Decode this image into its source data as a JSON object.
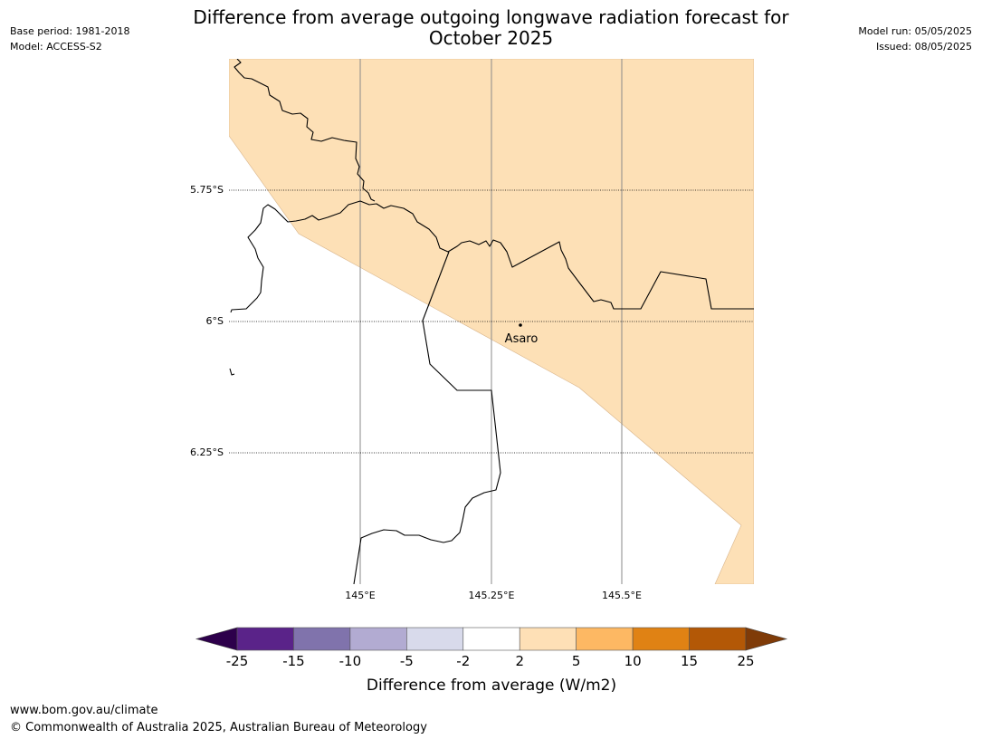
{
  "header": {
    "title_line1": "Difference from average outgoing longwave radiation forecast for",
    "title_line2": "October 2025",
    "base_period": "Base period: 1981-2018",
    "model": "Model: ACCESS-S2",
    "model_run": "Model run: 05/05/2025",
    "issued": "Issued: 08/05/2025"
  },
  "map": {
    "lat_labels": [
      "5.75°S",
      "6°S",
      "6.25°S"
    ],
    "lon_labels": [
      "145°E",
      "145.25°E",
      "145.5°E"
    ],
    "place_label": "Asaro",
    "shade_color": "#fde0b6"
  },
  "colorbar": {
    "title": "Difference from average (W/m2)",
    "ticks": [
      "-25",
      "-15",
      "-10",
      "-5",
      "-2",
      "2",
      "5",
      "10",
      "15",
      "25"
    ],
    "colors": [
      "#5a2389",
      "#8073ac",
      "#b2abd2",
      "#d8daeb",
      "#ffffff",
      "#fee0b6",
      "#fdb863",
      "#e08214",
      "#b35806"
    ],
    "under_color": "#2d004b",
    "over_color": "#7f3b08"
  },
  "footer": {
    "url": "www.bom.gov.au/climate",
    "copyright": "© Commonwealth of Australia 2025, Australian Bureau of Meteorology"
  }
}
